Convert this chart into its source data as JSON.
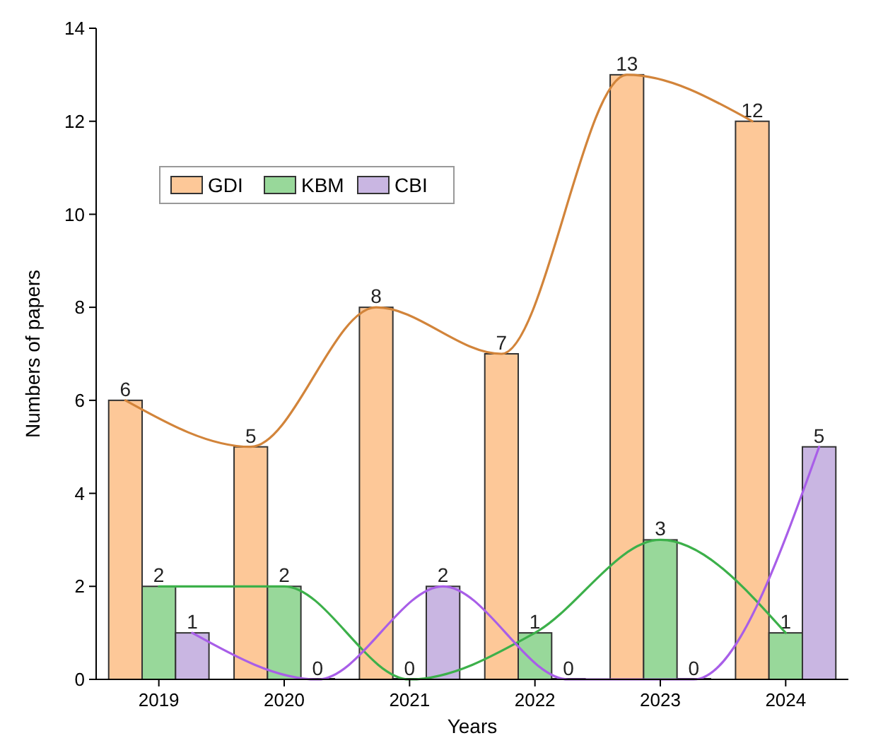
{
  "chart_data": {
    "type": "bar",
    "xlabel": "Years",
    "ylabel": "Numbers of papers",
    "categories": [
      "2019",
      "2020",
      "2021",
      "2022",
      "2023",
      "2024"
    ],
    "series": [
      {
        "name": "GDI",
        "color": "#fdc898",
        "values": [
          6,
          5,
          8,
          7,
          13,
          12
        ],
        "value_labels": [
          "6",
          "5",
          "8",
          "7",
          "13",
          "12"
        ]
      },
      {
        "name": "KBM",
        "color": "#98d89a",
        "values": [
          2,
          2,
          0,
          1,
          3,
          1
        ],
        "value_labels": [
          "2",
          "2",
          "0",
          "1",
          "3",
          "1"
        ]
      },
      {
        "name": "CBI",
        "color": "#c9b6e2",
        "values": [
          1,
          0,
          2,
          0,
          0,
          5
        ],
        "value_labels": [
          "1",
          "0",
          "2",
          "0",
          "0",
          "5"
        ]
      },
      {
        "type": "line",
        "color": "#d2843a",
        "values": [
          6,
          5,
          8,
          7,
          13,
          12
        ]
      },
      {
        "type": "line",
        "color": "#3cb04a",
        "values": [
          2,
          2,
          0,
          1,
          3,
          1
        ]
      },
      {
        "type": "line",
        "color": "#a85ee8",
        "values": [
          1,
          0,
          2,
          0,
          0,
          5
        ]
      }
    ],
    "ylim": [
      0,
      14
    ],
    "yticks": [
      0,
      2,
      4,
      6,
      8,
      10,
      12,
      14
    ],
    "legend": "top left",
    "grid": false
  }
}
